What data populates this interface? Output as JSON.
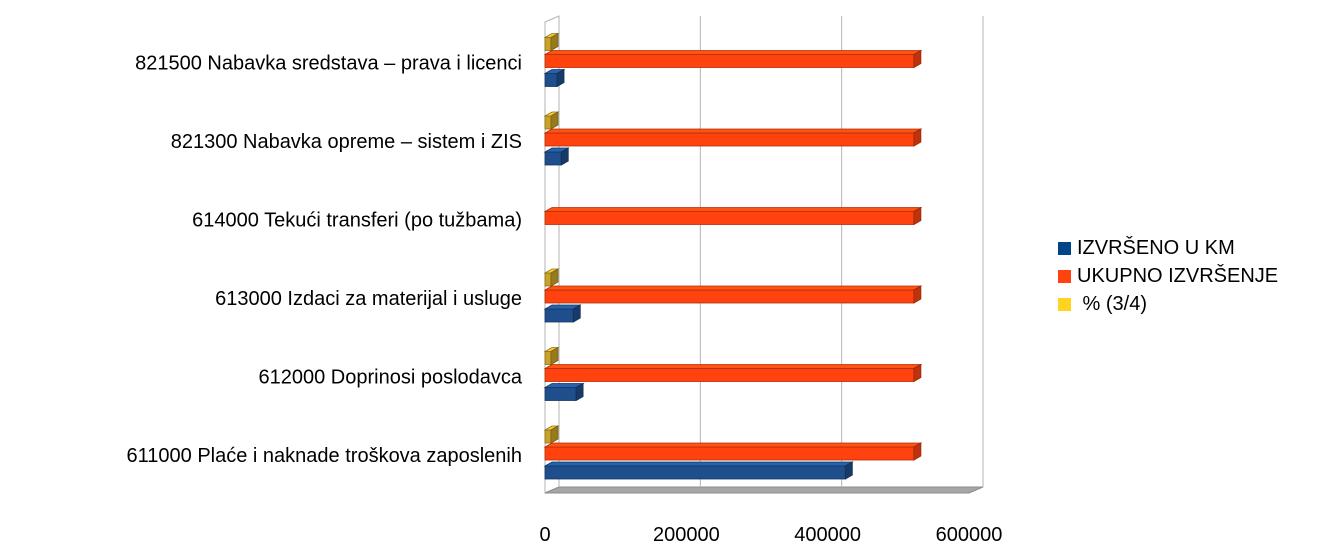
{
  "chart_data": {
    "type": "bar",
    "orientation": "horizontal",
    "three_d": true,
    "categories": [
      "611000 Plaće i naknade troškova zaposlenih",
      "612000 Doprinosi poslodavca",
      "613000 Izdaci za materijal i usluge",
      "614000 Tekući transferi (po tužbama)",
      "821300 Nabavka opreme – sistem i ZIS",
      "821500 Nabavka sredstava – prava i licenci"
    ],
    "series": [
      {
        "name": "IZVRŠENO U KM",
        "color": "#1F4E8C",
        "values": [
          425000,
          44000,
          40000,
          0,
          23000,
          17000
        ]
      },
      {
        "name": "UKUPNO IZVRŠENJE",
        "color": "#FF420E",
        "values": [
          522000,
          522000,
          522000,
          522000,
          522000,
          522000
        ]
      },
      {
        "name": " % (3/4)",
        "color": "#C9A227",
        "values": [
          82,
          84,
          81,
          0,
          90,
          85
        ]
      }
    ],
    "xlim": [
      0,
      600000
    ],
    "x_ticks": [
      "0",
      "200000",
      "400000",
      "600000"
    ],
    "grid": true,
    "legend_position": "right"
  },
  "legend": {
    "items": [
      {
        "label": "IZVRŠENO U KM",
        "color": "#004586"
      },
      {
        "label": "UKUPNO IZVRŠENJE",
        "color": "#FF420E"
      },
      {
        "label": " % (3/4)",
        "color": "#FFD320"
      }
    ]
  }
}
